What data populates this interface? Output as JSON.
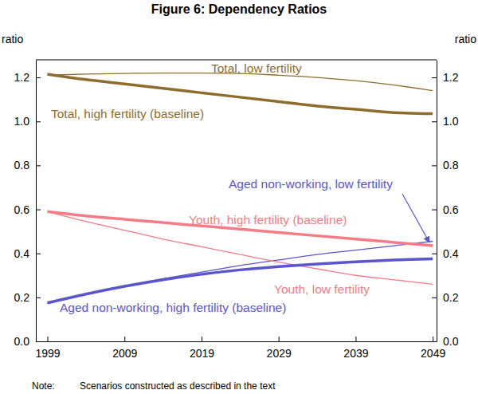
{
  "chart_data": {
    "type": "line",
    "title": "Figure 6: Dependency Ratios",
    "ylabel": "ratio",
    "y2label": "ratio",
    "annotations": [
      "Note:",
      "Scenarios constructed as described in the text"
    ],
    "x": [
      1999,
      2004,
      2009,
      2014,
      2019,
      2024,
      2029,
      2034,
      2039,
      2044,
      2049
    ],
    "xlim": [
      1997.5,
      2049.5
    ],
    "xticks": [
      1999,
      2009,
      2019,
      2029,
      2039,
      2049
    ],
    "ylim": [
      0,
      1.28
    ],
    "yticks": [
      {
        "value": 0,
        "label": "0.0"
      },
      {
        "value": 0.2,
        "label": "0.2"
      },
      {
        "value": 0.4,
        "label": "0.4"
      },
      {
        "value": 0.6,
        "label": "0.6"
      },
      {
        "value": 0.8,
        "label": "0.8"
      },
      {
        "value": 1,
        "label": "1.0"
      },
      {
        "value": 1.2,
        "label": "1.2"
      }
    ],
    "y2lim": [
      0,
      1.28
    ],
    "y2ticks": [
      {
        "value": 0,
        "label": "0.0"
      },
      {
        "value": 0.2,
        "label": "0.2"
      },
      {
        "value": 0.4,
        "label": "0.4"
      },
      {
        "value": 0.6,
        "label": "0.6"
      },
      {
        "value": 0.8,
        "label": "0.8"
      },
      {
        "value": 1,
        "label": "1.0"
      },
      {
        "value": 1.2,
        "label": "1.2"
      }
    ],
    "grid": false,
    "series": [
      {
        "name": "Total, low fertility",
        "color": "#8c6d2c",
        "line_style": "thin",
        "values": [
          1.21,
          1.215,
          1.218,
          1.22,
          1.22,
          1.218,
          1.21,
          1.2,
          1.185,
          1.165,
          1.14
        ]
      },
      {
        "name": "Total, high fertility (baseline)",
        "color": "#8c6d2c",
        "line_style": "thick",
        "values": [
          1.215,
          1.19,
          1.17,
          1.15,
          1.13,
          1.11,
          1.09,
          1.07,
          1.055,
          1.04,
          1.035
        ]
      },
      {
        "name": "Aged non-working, low fertility",
        "color": "#5b55cc",
        "line_style": "thin",
        "values": [
          0.175,
          0.215,
          0.25,
          0.285,
          0.315,
          0.345,
          0.37,
          0.395,
          0.415,
          0.435,
          0.455
        ]
      },
      {
        "name": "Youth, high fertility (baseline)",
        "color": "#f47c86",
        "line_style": "thick",
        "values": [
          0.59,
          0.57,
          0.555,
          0.54,
          0.525,
          0.51,
          0.495,
          0.48,
          0.465,
          0.45,
          0.435
        ]
      },
      {
        "name": "Youth, low fertility",
        "color": "#f47c86",
        "line_style": "thin",
        "values": [
          0.59,
          0.545,
          0.505,
          0.465,
          0.43,
          0.395,
          0.36,
          0.33,
          0.3,
          0.28,
          0.26
        ]
      },
      {
        "name": "Aged non-working, high fertility (baseline)",
        "color": "#5b55cc",
        "line_style": "thick",
        "values": [
          0.175,
          0.215,
          0.25,
          0.28,
          0.305,
          0.325,
          0.34,
          0.352,
          0.362,
          0.37,
          0.375
        ]
      }
    ]
  }
}
